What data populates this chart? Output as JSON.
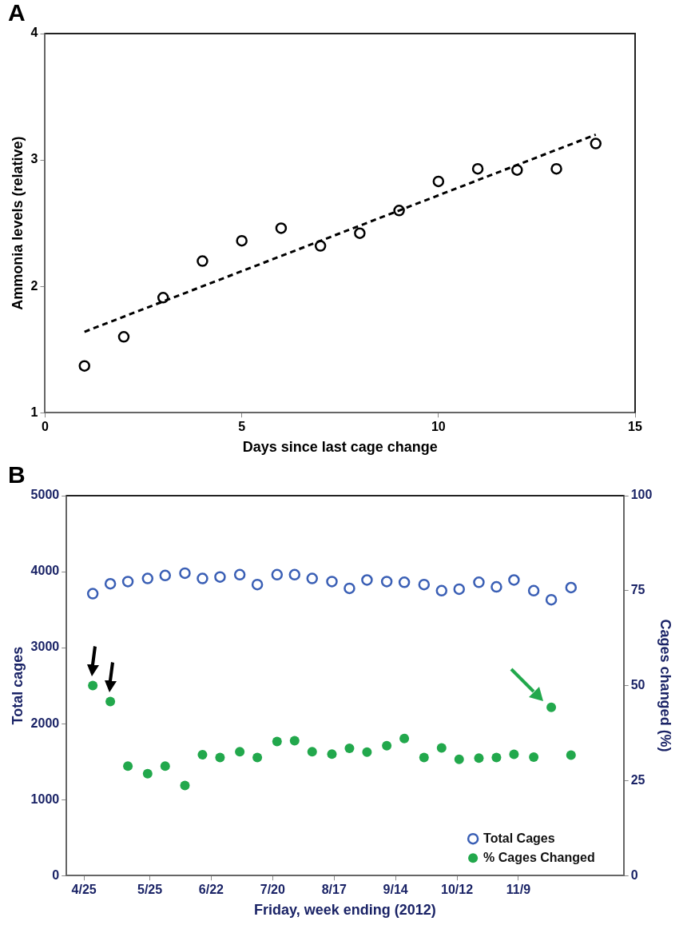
{
  "chart_data": [
    {
      "type": "scatter",
      "title": "A",
      "xlabel": "Days since last cage change",
      "ylabel": "Ammonia levels (relative)",
      "xlim": [
        0,
        15
      ],
      "xticks": [
        0,
        5,
        10,
        15
      ],
      "ylim": [
        1,
        4
      ],
      "yticks": [
        1,
        2,
        3,
        4
      ],
      "marker": "circle",
      "x": [
        1,
        2,
        3,
        4,
        5,
        6,
        7,
        8,
        9,
        10,
        11,
        12,
        13,
        14
      ],
      "series": [
        {
          "color": "#000000",
          "values": [
            1.37,
            1.6,
            1.91,
            2.2,
            2.36,
            2.46,
            2.32,
            2.42,
            2.6,
            2.83,
            2.93,
            2.92,
            2.93,
            3.13
          ]
        },
        {
          "type": "line",
          "x": [
            1,
            14
          ],
          "values": [
            1.64,
            3.2
          ],
          "color": "#000000",
          "line_style": "dashed",
          "marker": "none"
        }
      ]
    },
    {
      "type": "scatter",
      "title": "B",
      "xlabel": "Friday, week ending (2012)",
      "ylabel": "Total cages",
      "y2label": "Cages changed (%)",
      "legend": "bottom right",
      "marker": "circle",
      "x": [
        "2012-04-29",
        "2012-05-07",
        "2012-05-15",
        "2012-05-24",
        "2012-06-01",
        "2012-06-10",
        "2012-06-18",
        "2012-06-26",
        "2012-07-05",
        "2012-07-13",
        "2012-07-22",
        "2012-07-30",
        "2012-08-07",
        "2012-08-16",
        "2012-08-24",
        "2012-09-01",
        "2012-09-10",
        "2012-09-18",
        "2012-09-27",
        "2012-10-05",
        "2012-10-13",
        "2012-10-22",
        "2012-10-30",
        "2012-11-07",
        "2012-11-16",
        "2012-11-24",
        "2012-12-03"
      ],
      "xlim": [
        "2012-04-17",
        "2012-12-27"
      ],
      "xticks": [
        {
          "value": "2012-04-25",
          "label": "4/25"
        },
        {
          "value": "2012-05-25",
          "label": "5/25"
        },
        {
          "value": "2012-06-22",
          "label": "6/22"
        },
        {
          "value": "2012-07-20",
          "label": "7/20"
        },
        {
          "value": "2012-08-17",
          "label": "8/17"
        },
        {
          "value": "2012-09-14",
          "label": "9/14"
        },
        {
          "value": "2012-10-12",
          "label": "10/12"
        },
        {
          "value": "2012-11-09",
          "label": "11/9"
        }
      ],
      "ylim": [
        0,
        5000
      ],
      "yticks": [
        0,
        1000,
        2000,
        3000,
        4000,
        5000
      ],
      "y2lim": [
        0,
        100
      ],
      "y2ticks": [
        0,
        25,
        50,
        75,
        100
      ],
      "series": [
        {
          "name": "Total Cages",
          "color": "#3a5fb5",
          "values": [
            3710,
            3840,
            3870,
            3910,
            3950,
            3980,
            3910,
            3930,
            3960,
            3830,
            3960,
            3960,
            3910,
            3870,
            3780,
            3890,
            3870,
            3860,
            3830,
            3750,
            3770,
            3860,
            3800,
            3890,
            3750,
            3630,
            3790
          ]
        },
        {
          "name": "% Cages Changed",
          "color": "#22a84c",
          "axis": "y2",
          "values": [
            50,
            45.8,
            28.8,
            26.8,
            28.8,
            23.7,
            31.8,
            31.1,
            32.6,
            31.1,
            35.3,
            35.5,
            32.6,
            32,
            33.5,
            32.5,
            34.2,
            36.1,
            31.1,
            33.6,
            30.6,
            30.9,
            31.1,
            31.9,
            31.2,
            44.3,
            31.7
          ]
        }
      ]
    }
  ]
}
